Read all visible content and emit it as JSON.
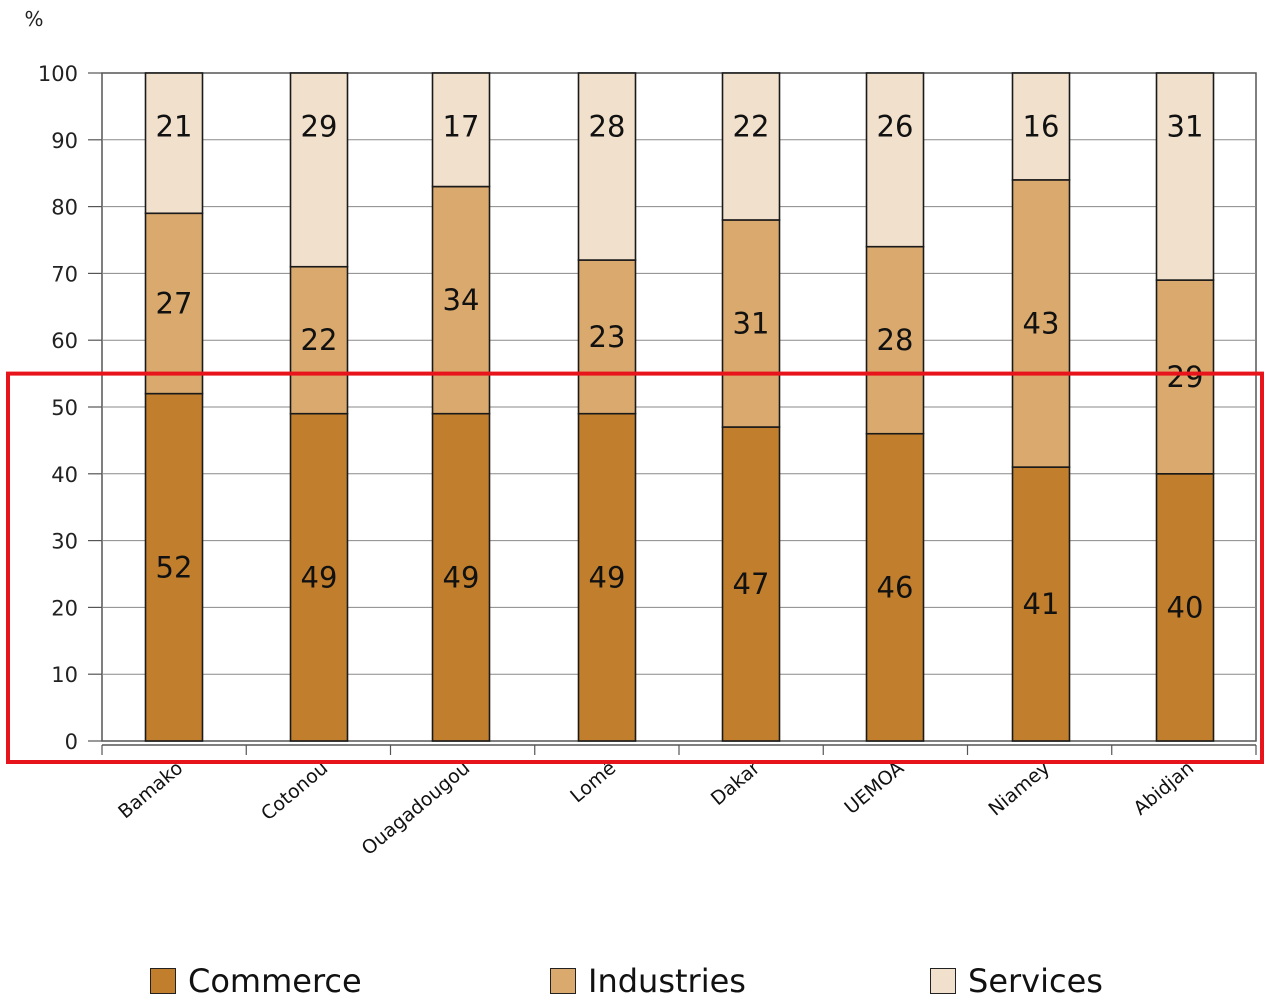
{
  "chart_data": {
    "type": "bar",
    "stacked": true,
    "title": "",
    "ylabel": "%",
    "xlabel": "",
    "ylim": [
      0,
      100
    ],
    "yticks": [
      0,
      10,
      20,
      30,
      40,
      50,
      60,
      70,
      80,
      90,
      100
    ],
    "grid": true,
    "legend_position": "bottom",
    "categories": [
      "Bamako",
      "Cotonou",
      "Ouagadougou",
      "Lomé",
      "Dakar",
      "UEMOA",
      "Niamey",
      "Abidjan"
    ],
    "series": [
      {
        "name": "Commerce",
        "color": "#c17f2e",
        "values": [
          52,
          49,
          49,
          49,
          47,
          46,
          41,
          40
        ]
      },
      {
        "name": "Industries",
        "color": "#d9a96e",
        "values": [
          27,
          22,
          34,
          23,
          31,
          28,
          43,
          29
        ]
      },
      {
        "name": "Services",
        "color": "#f1e0cb",
        "values": [
          21,
          29,
          17,
          28,
          22,
          26,
          16,
          31
        ]
      }
    ],
    "highlight": {
      "color": "#e8141b",
      "y_range": [
        0,
        55
      ]
    }
  }
}
